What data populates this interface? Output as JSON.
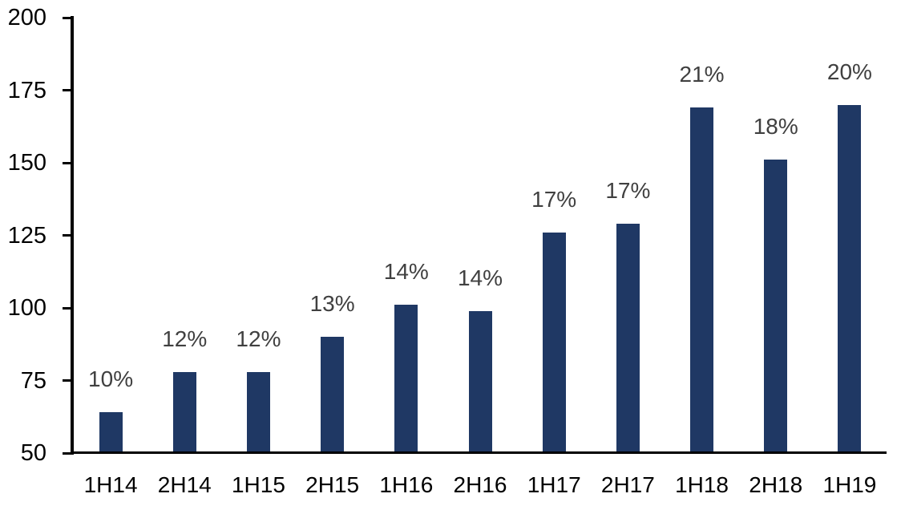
{
  "chart_data": {
    "type": "bar",
    "title": "",
    "xlabel": "",
    "ylabel": "",
    "categories": [
      "1H14",
      "2H14",
      "1H15",
      "2H15",
      "1H16",
      "2H16",
      "1H17",
      "2H17",
      "1H18",
      "2H18",
      "1H19"
    ],
    "series": [
      {
        "name": "value",
        "values": [
          64,
          78,
          78,
          90,
          101,
          99,
          126,
          129,
          169,
          151,
          170
        ],
        "data_labels": [
          "10%",
          "12%",
          "12%",
          "13%",
          "14%",
          "14%",
          "17%",
          "17%",
          "21%",
          "18%",
          "20%"
        ]
      }
    ],
    "ylim": [
      50,
      200
    ],
    "y_ticks": [
      200,
      175,
      150,
      125,
      100,
      75,
      50
    ],
    "grid": false,
    "legend_position": "none"
  },
  "colors": {
    "bar": "#1F3864",
    "data_label": "#404040",
    "axis": "#000000",
    "tick_label": "#000000",
    "background": "#FFFFFF"
  }
}
